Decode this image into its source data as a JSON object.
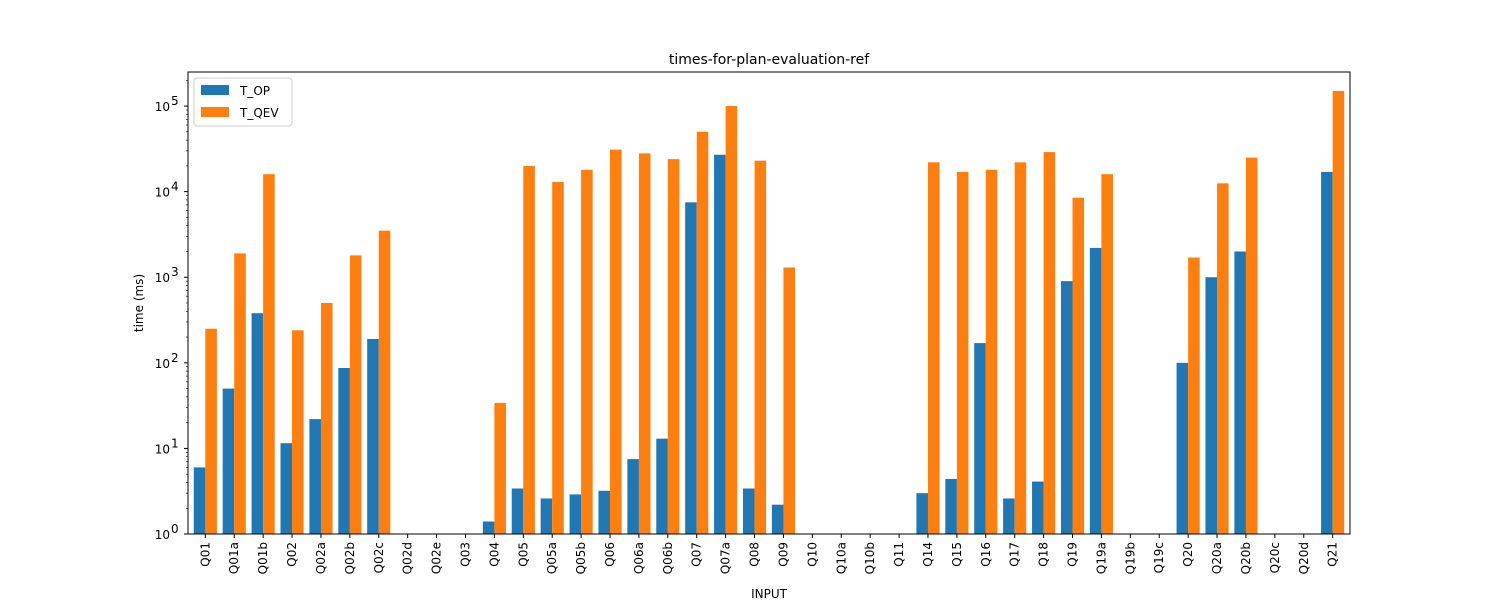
{
  "chart_data": {
    "type": "bar",
    "title": "times-for-plan-evaluation-ref",
    "xlabel": "INPUT",
    "ylabel": "time (ms)",
    "yscale": "log",
    "ylim": [
      1,
      250000
    ],
    "yticks": [
      {
        "value": 1,
        "base": "10",
        "exp": "0"
      },
      {
        "value": 10,
        "base": "10",
        "exp": "1"
      },
      {
        "value": 100,
        "base": "10",
        "exp": "2"
      },
      {
        "value": 1000,
        "base": "10",
        "exp": "3"
      },
      {
        "value": 10000,
        "base": "10",
        "exp": "4"
      },
      {
        "value": 100000,
        "base": "10",
        "exp": "5"
      }
    ],
    "legend_position": "top-left",
    "grid": false,
    "categories": [
      "Q01",
      "Q01a",
      "Q01b",
      "Q02",
      "Q02a",
      "Q02b",
      "Q02c",
      "Q02d",
      "Q02e",
      "Q03",
      "Q04",
      "Q05",
      "Q05a",
      "Q05b",
      "Q06",
      "Q06a",
      "Q06b",
      "Q07",
      "Q07a",
      "Q08",
      "Q09",
      "Q10",
      "Q10a",
      "Q10b",
      "Q11",
      "Q14",
      "Q15",
      "Q16",
      "Q17",
      "Q18",
      "Q19",
      "Q19a",
      "Q19b",
      "Q19c",
      "Q20",
      "Q20a",
      "Q20b",
      "Q20c",
      "Q20d",
      "Q21"
    ],
    "series": [
      {
        "name": "T_OP",
        "color": "#1f77b4",
        "values": [
          6,
          50,
          380,
          11.5,
          22,
          87,
          190,
          0,
          0,
          0,
          1.4,
          3.4,
          2.6,
          2.9,
          3.2,
          7.5,
          13,
          7500,
          27000,
          3.4,
          2.2,
          0,
          0,
          0,
          0,
          3,
          4.4,
          170,
          2.6,
          4.1,
          900,
          2200,
          0,
          0,
          100,
          1000,
          2000,
          0,
          0,
          17000
        ]
      },
      {
        "name": "T_QEV",
        "color": "#ff7f0e",
        "values": [
          250,
          1900,
          16000,
          240,
          500,
          1800,
          3500,
          0,
          0,
          0,
          34,
          20000,
          13000,
          18000,
          31000,
          28000,
          24000,
          50000,
          100000,
          23000,
          1300,
          0,
          0,
          0,
          0,
          22000,
          17000,
          18000,
          22000,
          29000,
          8500,
          16000,
          0,
          0,
          1700,
          12500,
          25000,
          0,
          0,
          150000
        ]
      }
    ]
  }
}
